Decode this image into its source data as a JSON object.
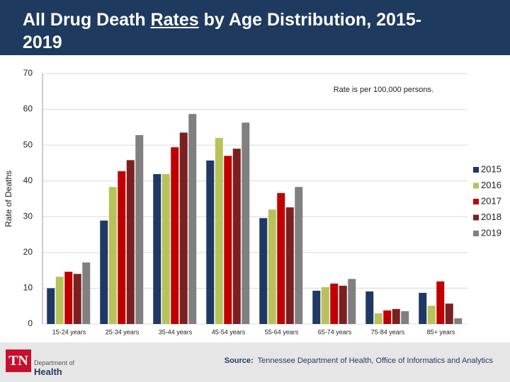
{
  "chart_data": {
    "type": "bar",
    "title_parts": [
      "All Drug Death",
      "Rates",
      "by Age Distribution, 2015-2019"
    ],
    "y_label": "Rate of Deaths",
    "annotation": "Rate is per 100,000 persons.",
    "categories": [
      "15-24 years",
      "25-34 years",
      "35-44 years",
      "45-54 years",
      "55-64 years",
      "65-74 years",
      "75-84 years",
      "85+ years"
    ],
    "series": [
      {
        "name": "2015",
        "color": "#1f3864",
        "values": [
          10.0,
          28.9,
          41.9,
          45.7,
          29.6,
          9.3,
          9.1,
          8.7
        ]
      },
      {
        "name": "2016",
        "color": "#b8c25a",
        "values": [
          13.2,
          38.3,
          41.9,
          52.0,
          32.0,
          10.3,
          3.0,
          5.1
        ]
      },
      {
        "name": "2017",
        "color": "#c00000",
        "values": [
          14.6,
          42.7,
          49.4,
          47.0,
          36.6,
          11.3,
          3.8,
          11.9
        ]
      },
      {
        "name": "2018",
        "color": "#7b2020",
        "values": [
          14.0,
          45.8,
          53.5,
          49.0,
          32.6,
          10.7,
          4.2,
          5.7
        ]
      },
      {
        "name": "2019",
        "color": "#808080",
        "values": [
          17.2,
          52.8,
          58.7,
          56.3,
          38.3,
          12.6,
          3.6,
          1.6
        ]
      }
    ],
    "ylim": [
      0,
      70
    ],
    "yticks": [
      0,
      10,
      20,
      30,
      40,
      50,
      60,
      70
    ],
    "grid": true,
    "legend": "right"
  },
  "footer": {
    "logo_mark": "TN",
    "logo_line1": "Department of",
    "logo_line2": "Health",
    "source_label": "Source:",
    "source": "Tennessee Department of Health, Office of Informatics and Analytics"
  }
}
